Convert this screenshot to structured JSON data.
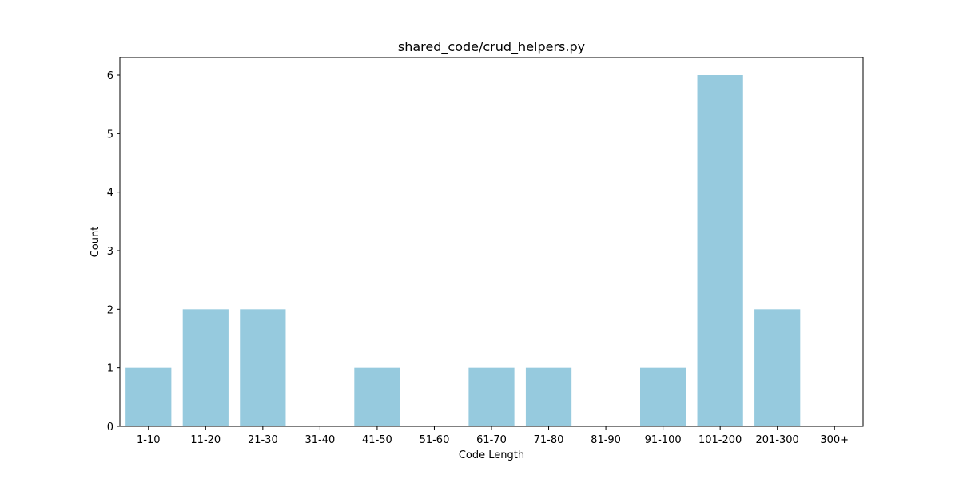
{
  "chart_data": {
    "type": "bar",
    "title": "shared_code/crud_helpers.py",
    "xlabel": "Code Length",
    "ylabel": "Count",
    "categories": [
      "1-10",
      "11-20",
      "21-30",
      "31-40",
      "41-50",
      "51-60",
      "61-70",
      "71-80",
      "81-90",
      "91-100",
      "101-200",
      "201-300",
      "300+"
    ],
    "values": [
      1,
      2,
      2,
      0,
      1,
      0,
      1,
      1,
      0,
      1,
      6,
      2,
      0
    ],
    "ylim": [
      0,
      6.3
    ],
    "yticks": [
      "0",
      "1",
      "2",
      "3",
      "4",
      "5",
      "6"
    ],
    "bar_color": "#96cade",
    "grid": false,
    "legend": "none"
  }
}
